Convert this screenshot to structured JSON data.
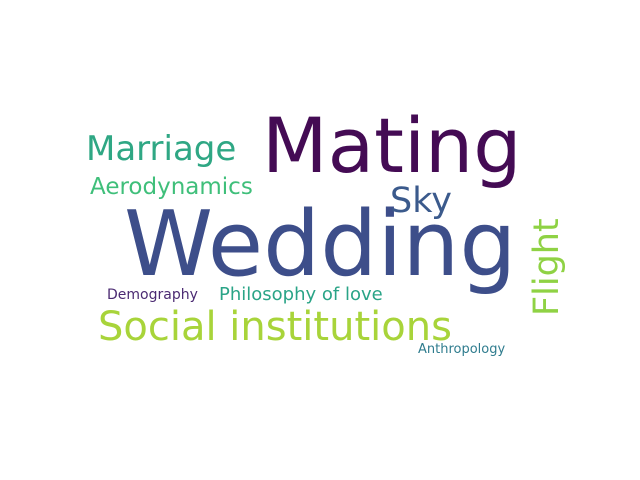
{
  "words": [
    {
      "text": "Wedding",
      "color": "#3d4e8a"
    },
    {
      "text": "Mating",
      "color": "#440b54"
    },
    {
      "text": "Social institutions",
      "color": "#a8d43a"
    },
    {
      "text": "Marriage",
      "color": "#2fa784"
    },
    {
      "text": "Flight",
      "color": "#8fd244"
    },
    {
      "text": "Sky",
      "color": "#3b5a8c"
    },
    {
      "text": "Aerodynamics",
      "color": "#3fbf7a"
    },
    {
      "text": "Philosophy of love",
      "color": "#2aa487"
    },
    {
      "text": "Demography",
      "color": "#4b2a72"
    },
    {
      "text": "Anthropology",
      "color": "#2f7c8e"
    }
  ]
}
